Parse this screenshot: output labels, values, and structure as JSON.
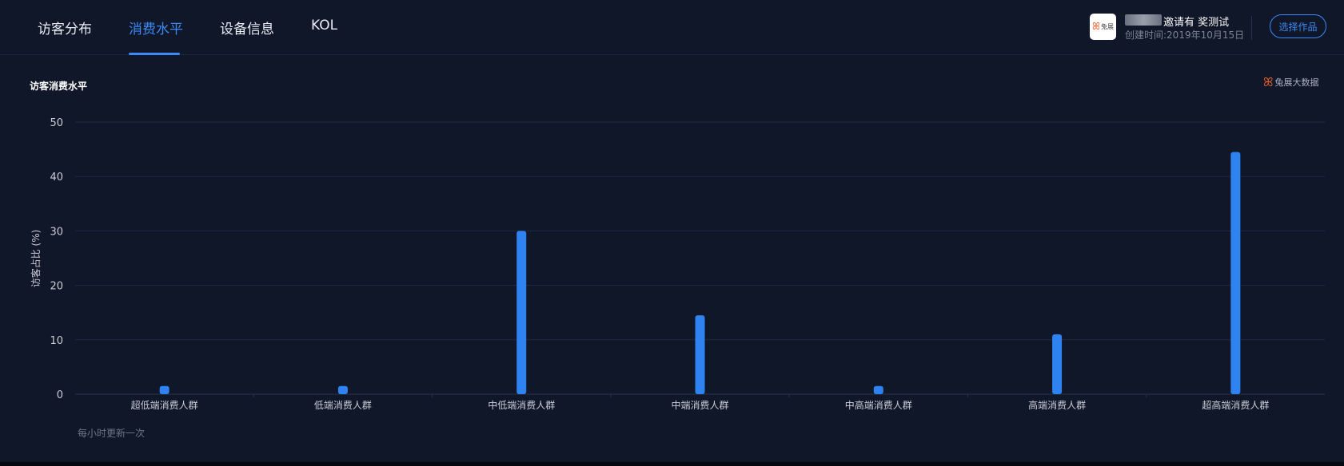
{
  "tabs": [
    {
      "label": "访客分布",
      "active": false
    },
    {
      "label": "消费水平",
      "active": true
    },
    {
      "label": "设备信息",
      "active": false
    },
    {
      "label": "KOL",
      "active": false
    }
  ],
  "profile": {
    "logo_text": "兔展",
    "name": "邀请有 奖测试",
    "created": "创建时间:2019年10月15日",
    "select_button": "选择作品"
  },
  "chart_title": "访客消费水平",
  "brand": "兔展大数据",
  "footnote": "每小时更新一次",
  "colors": {
    "background": "#101729",
    "accent": "#3b8af6",
    "bar": "#2f83f0",
    "grid": "#1f2840"
  },
  "chart_data": {
    "type": "bar",
    "categories": [
      "超低端消费人群",
      "低端消费人群",
      "中低端消费人群",
      "中端消费人群",
      "中高端消费人群",
      "高端消费人群",
      "超高端消费人群"
    ],
    "values": [
      1.5,
      1.5,
      30,
      14.5,
      1.5,
      11,
      44.5
    ],
    "ylabel": "访客占比 (%)",
    "xlabel": "",
    "ylim": [
      0,
      50
    ],
    "yticks": [
      0,
      10,
      20,
      30,
      40,
      50
    ],
    "grid": true
  }
}
